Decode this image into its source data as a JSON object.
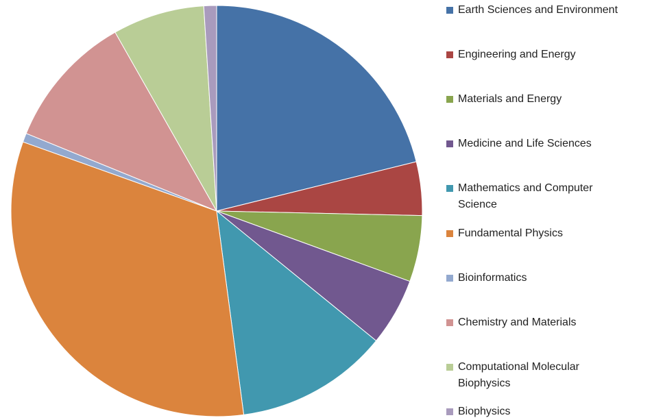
{
  "chart_data": {
    "type": "pie",
    "categories": [
      "Earth Sciences and Environment",
      "Engineering and Energy",
      "Materials and Energy",
      "Medicine and Life Sciences",
      "Mathematics and Computer Science",
      "Fundamental Physics",
      "Bioinformatics",
      "Chemistry and Materials",
      "Computational Molecular Biophysics",
      "Biophysics"
    ],
    "values": [
      21.1,
      4.2,
      5.2,
      5.3,
      12.0,
      32.5,
      0.7,
      10.6,
      7.2,
      1.0
    ],
    "colors": [
      "#4572a7",
      "#aa4643",
      "#89a54e",
      "#71588f",
      "#4198af",
      "#db843d",
      "#93a9cf",
      "#d19392",
      "#b9cd96",
      "#a99bbd"
    ],
    "legend": "right"
  }
}
